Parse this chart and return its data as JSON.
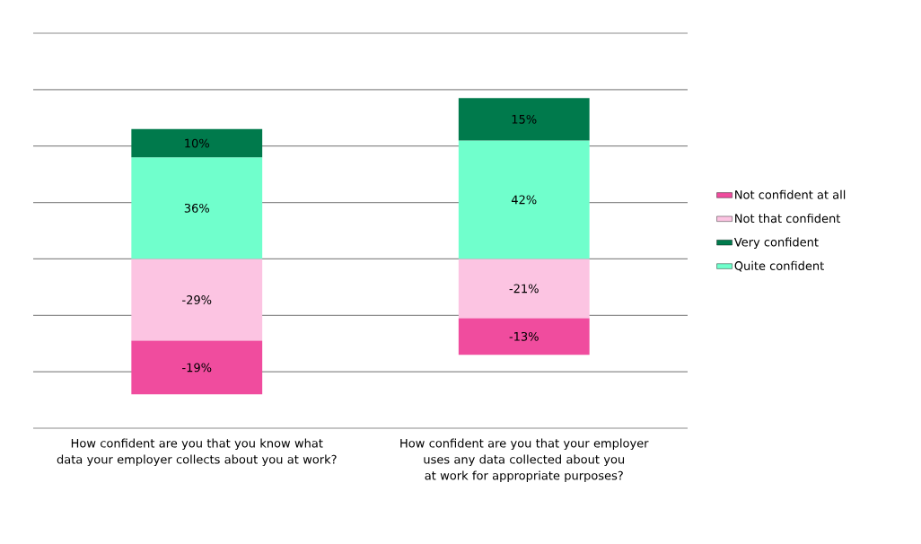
{
  "chart_data": {
    "type": "bar",
    "stacked": true,
    "categories": [
      "How confident are you that you know what data your employer collects about you at work?",
      "How confident are you that your employer uses any data collected about you at work for appropriate purposes?"
    ],
    "series": [
      {
        "name": "Quite confident",
        "color": "#70ffcc",
        "values": [
          36,
          42
        ],
        "value_labels": [
          "36%",
          "42%"
        ]
      },
      {
        "name": "Very confident",
        "color": "#007a4c",
        "values": [
          10,
          15
        ],
        "value_labels": [
          "10%",
          "15%"
        ]
      },
      {
        "name": "Not that confident",
        "color": "#fcc4e2",
        "values": [
          -29,
          -21
        ],
        "value_labels": [
          "-29%",
          "-21%"
        ]
      },
      {
        "name": "Not confident at all",
        "color": "#f04c9e",
        "values": [
          -19,
          -13
        ],
        "value_labels": [
          "-19%",
          "-13%"
        ]
      }
    ],
    "ylim": [
      -60,
      80
    ],
    "yticks": [
      {
        "value": -60,
        "label": null
      },
      {
        "value": -40,
        "label": null
      },
      {
        "value": -20,
        "label": null
      },
      {
        "value": 0,
        "label": null
      },
      {
        "value": 20,
        "label": null
      },
      {
        "value": 40,
        "label": null
      },
      {
        "value": 60,
        "label": null
      },
      {
        "value": 80,
        "label": null
      }
    ],
    "grid": "y",
    "legend": "right",
    "tick_labels": "x"
  }
}
